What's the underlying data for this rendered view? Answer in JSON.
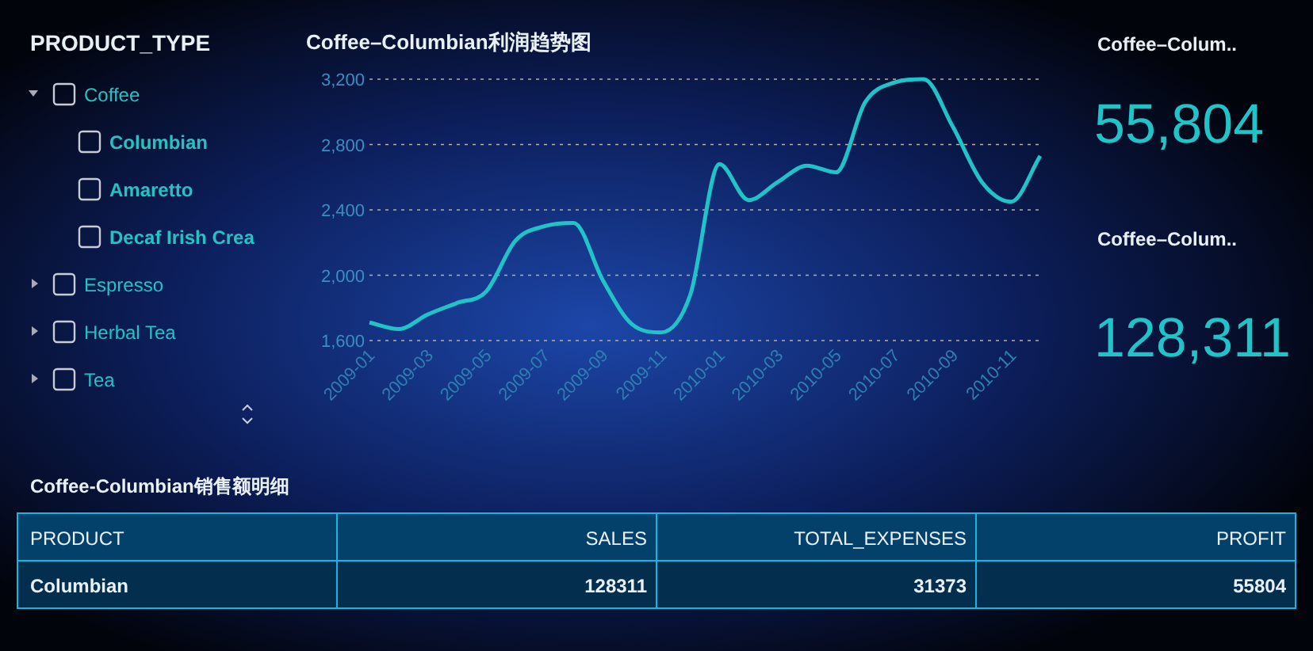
{
  "chart_data": [
    {
      "type": "other",
      "title": "PRODUCT_TYPE",
      "categories": [
        "Coffee",
        "Columbian",
        "Amaretto",
        "Decaf Irish Crea",
        "Espresso",
        "Herbal Tea",
        "Tea"
      ]
    },
    {
      "type": "line",
      "title": "Coffee–Columbian利润趋势图",
      "x": [
        "2009-01",
        "2009-02",
        "2009-03",
        "2009-04",
        "2009-05",
        "2009-06",
        "2009-07",
        "2009-08",
        "2009-09",
        "2009-10",
        "2009-11",
        "2009-12",
        "2010-01",
        "2010-02",
        "2010-03",
        "2010-04",
        "2010-05",
        "2010-06",
        "2010-07",
        "2010-08",
        "2010-09",
        "2010-10",
        "2010-11",
        "2010-12"
      ],
      "series": [
        {
          "color": "#1fc3c8",
          "values": [
            1710,
            1670,
            1760,
            1830,
            1900,
            2210,
            2300,
            2320,
            1970,
            1700,
            1650,
            1880,
            2680,
            2460,
            2570,
            2670,
            2630,
            3060,
            3180,
            3200,
            2910,
            2570,
            2450,
            2730
          ]
        }
      ],
      "xlim": [
        "2009-01",
        "2010-12"
      ],
      "ylim": [
        1600,
        3200
      ],
      "xticks": [
        {
          "value": "2009-01",
          "label": "2009-01"
        },
        {
          "value": "2009-03",
          "label": "2009-03"
        },
        {
          "value": "2009-05",
          "label": "2009-05"
        },
        {
          "value": "2009-07",
          "label": "2009-07"
        },
        {
          "value": "2009-09",
          "label": "2009-09"
        },
        {
          "value": "2009-11",
          "label": "2009-11"
        },
        {
          "value": "2010-01",
          "label": "2010-01"
        },
        {
          "value": "2010-03",
          "label": "2010-03"
        },
        {
          "value": "2010-05",
          "label": "2010-05"
        },
        {
          "value": "2010-07",
          "label": "2010-07"
        },
        {
          "value": "2010-09",
          "label": "2010-09"
        },
        {
          "value": "2010-11",
          "label": "2010-11"
        }
      ],
      "yticks": [
        {
          "value": 1600,
          "label": "1,600"
        },
        {
          "value": 2000,
          "label": "2,000"
        },
        {
          "value": 2400,
          "label": "2,400"
        },
        {
          "value": 2800,
          "label": "2,800"
        },
        {
          "value": 3200,
          "label": "3,200"
        }
      ],
      "grid": "y",
      "marker": "none",
      "line_style": "solid"
    },
    {
      "type": "other",
      "title": "Coffee–Colum..",
      "value_labels": [
        "55,804"
      ]
    },
    {
      "type": "other",
      "title": "Coffee–Colum..",
      "value_labels": [
        "128,311"
      ]
    },
    {
      "type": "other",
      "title": "Coffee-Columbian销售额明细",
      "categories": [
        "PRODUCT",
        "SALES",
        "TOTAL_EXPENSES",
        "PROFIT"
      ],
      "value_labels": [
        "Columbian",
        "128311",
        "31373",
        "55804"
      ]
    }
  ]
}
